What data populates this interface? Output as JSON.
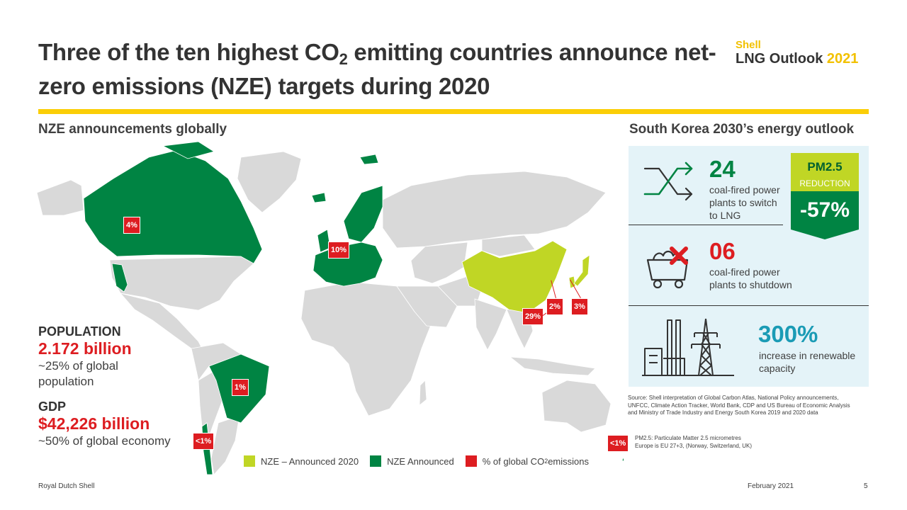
{
  "header": {
    "title_part1": "Three of the ten highest CO",
    "title_sub": "2",
    "title_part2": " emitting countries announce net-zero emissions (NZE) targets during 2020",
    "brand_shell": "Shell",
    "brand_lng": "LNG Outlook ",
    "brand_year": "2021"
  },
  "map_section": {
    "heading": "NZE announcements globally",
    "badges": {
      "canada": "4%",
      "europe": "10%",
      "china": "29%",
      "korea": "2%",
      "japan": "3%",
      "brazil": "1%",
      "chile": "<1%",
      "new_zealand": "<1%"
    },
    "legend": {
      "item1": "NZE – Announced 2020",
      "item2": "NZE Announced",
      "item3_part1": "% of global CO",
      "item3_sub": "2",
      "item3_part2": " emissions"
    },
    "colors": {
      "nze_2020": "#c0d625",
      "nze_announced": "#008443",
      "emissions_badge": "#dd1d21",
      "land": "#d9d9d9"
    }
  },
  "stats": {
    "population_label": "POPULATION",
    "population_value": "2.172 billion",
    "population_desc": "~25% of global population",
    "gdp_label": "GDP",
    "gdp_value": "$42,226 billion",
    "gdp_desc": "~50% of global economy"
  },
  "korea_panel": {
    "heading": "South Korea 2030’s energy outlook",
    "item1_number": "24",
    "item1_desc": "coal-fired power plants to switch to LNG",
    "item1_icon": "switch-arrows-icon",
    "item2_number": "06",
    "item2_desc": "coal-fired power plants to shutdown",
    "item2_icon": "coal-cart-cross-icon",
    "item3_number": "300%",
    "item3_desc": "increase in renewable capacity",
    "item3_icon": "power-plant-pylon-icon",
    "pm_title": "PM2.5",
    "pm_sub": "REDUCTION",
    "pm_value": "-57%"
  },
  "notes": {
    "source": "Source: Shell interpretation of Global Carbon Atlas, National Policy announcements, UNFCC, Climate Action Tracker, World Bank, CDP and US Bureau of Economic Analysis and Ministry of Trade Industry and Energy South Korea 2019 and 2020 data",
    "pm_note": "PM2.5: Particulate Matter 2.5 micrometres",
    "eu_note": "Europe is EU 27+3, (Norway, Switzerland, UK)"
  },
  "footer": {
    "company": "Royal Dutch Shell",
    "date": "February 2021",
    "page": "5"
  }
}
